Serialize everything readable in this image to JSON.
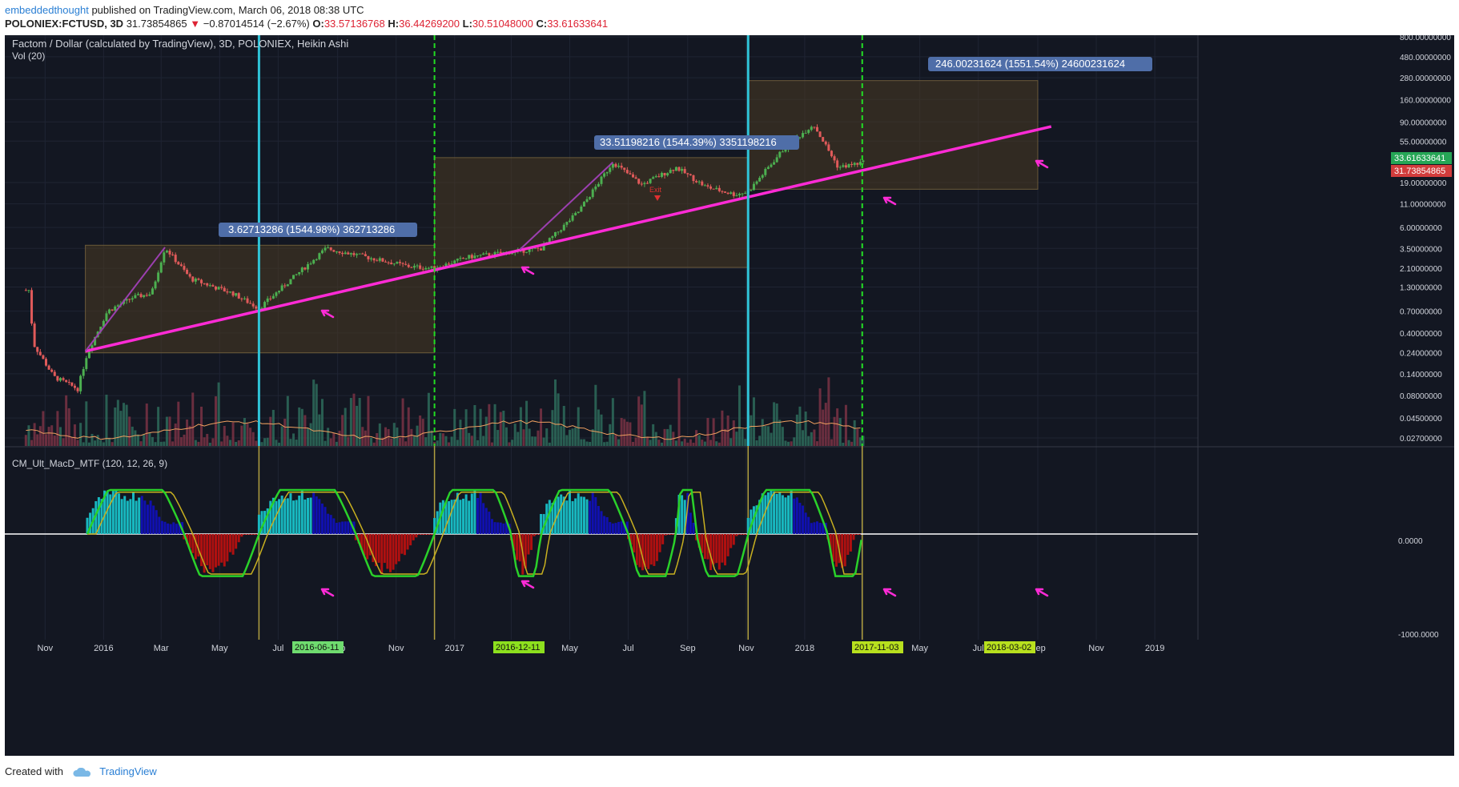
{
  "header": {
    "author": "embeddedthought",
    "published": "published on TradingView.com, March 06, 2018 08:38 UTC",
    "symbol": "POLONIEX:FCTUSD, 3D",
    "price": "31.73854865",
    "change": "−0.87014514 (−2.67%)",
    "o_label": "O:",
    "o": "33.57136768",
    "h_label": "H:",
    "h": "36.44269200",
    "l_label": "L:",
    "l": "30.51048000",
    "c_label": "C:",
    "c": "33.61633641"
  },
  "panel_title": "Factom / Dollar (calculated by TradingView), 3D, POLONIEX, Heikin Ashi",
  "vol_label": "Vol (20)",
  "macd_label": "CM_Ult_MacD_MTF (120, 12, 26, 9)",
  "footer": {
    "created_with": "Created with",
    "brand": "TradingView"
  },
  "colors": {
    "background": "#131722",
    "grid": "#1f2433",
    "candle_up": "#4caf50",
    "candle_down": "#e05a5a",
    "trendline": "#ff2bd6",
    "cyan_marker": "#2fc4d8",
    "green_marker": "#22dd22",
    "box_fill": "#4a3a22",
    "macd_blue": "#1010b0",
    "macd_aqua": "#18b8c0",
    "macd_red": "#b01010",
    "macd_yellow": "#c8b020"
  },
  "chart_data": [
    {
      "type": "candlestick",
      "title": "Factom / Dollar (calculated by TradingView), 3D, POLONIEX, Heikin Ashi",
      "y_scale": "log",
      "y_ticks": [
        "800.00000000",
        "480.00000000",
        "280.00000000",
        "160.00000000",
        "90.00000000",
        "55.00000000",
        "19.00000000",
        "11.00000000",
        "6.00000000",
        "3.50000000",
        "2.10000000",
        "1.30000000",
        "0.70000000",
        "0.40000000",
        "0.24000000",
        "0.14000000",
        "0.08000000",
        "0.04500000",
        "0.02700000"
      ],
      "x_ticks": [
        "Nov",
        "2016",
        "Mar",
        "May",
        "Jul",
        "Sep",
        "Nov",
        "2017",
        "Mar",
        "May",
        "Jul",
        "Sep",
        "Nov",
        "2018",
        "Mar",
        "May",
        "Jul",
        "Sep",
        "Nov",
        "2019"
      ],
      "last_price_label": "33.61633641",
      "last_price_label_red": "31.73854865",
      "approx_price_path": [
        {
          "x": "2015-10-15",
          "y": 1.2
        },
        {
          "x": "2015-10-20",
          "y": 0.3
        },
        {
          "x": "2015-11-10",
          "y": 0.13
        },
        {
          "x": "2015-12-05",
          "y": 0.095
        },
        {
          "x": "2015-12-15",
          "y": 0.24
        },
        {
          "x": "2016-01-05",
          "y": 0.7
        },
        {
          "x": "2016-02-01",
          "y": 1.0
        },
        {
          "x": "2016-02-20",
          "y": 1.1
        },
        {
          "x": "2016-03-05",
          "y": 3.6
        },
        {
          "x": "2016-04-01",
          "y": 1.6
        },
        {
          "x": "2016-05-15",
          "y": 1.1
        },
        {
          "x": "2016-06-11",
          "y": 0.75
        },
        {
          "x": "2016-07-15",
          "y": 1.6
        },
        {
          "x": "2016-08-20",
          "y": 3.5
        },
        {
          "x": "2016-10-01",
          "y": 2.8
        },
        {
          "x": "2016-11-15",
          "y": 2.2
        },
        {
          "x": "2016-12-11",
          "y": 2.1
        },
        {
          "x": "2017-01-15",
          "y": 2.8
        },
        {
          "x": "2017-03-01",
          "y": 3.2
        },
        {
          "x": "2017-04-01",
          "y": 3.5
        },
        {
          "x": "2017-05-10",
          "y": 9.0
        },
        {
          "x": "2017-06-15",
          "y": 32.0
        },
        {
          "x": "2017-07-15",
          "y": 18.0
        },
        {
          "x": "2017-08-20",
          "y": 28.0
        },
        {
          "x": "2017-09-20",
          "y": 17.0
        },
        {
          "x": "2017-10-20",
          "y": 14.0
        },
        {
          "x": "2017-11-03",
          "y": 15.0
        },
        {
          "x": "2017-12-10",
          "y": 45.0
        },
        {
          "x": "2018-01-10",
          "y": 85.0
        },
        {
          "x": "2018-02-05",
          "y": 28.0
        },
        {
          "x": "2018-03-02",
          "y": 31.7
        }
      ],
      "measure_boxes": [
        {
          "label": "3.62713286 (1544.98%) 362713286",
          "from": "2015-12-13",
          "to": "2016-12-11"
        },
        {
          "label": "33.51198216 (1544.39%) 3351198216",
          "from": "2016-12-11",
          "to": "2017-11-03"
        },
        {
          "label": "246.00231624 (1551.54%) 24600231624",
          "from": "2017-11-03",
          "to": "2018-09-01"
        }
      ],
      "annotations": [
        "Exit"
      ],
      "trendline": {
        "from": {
          "x": "2015-12-13",
          "y": 0.25
        },
        "to": {
          "x": "2018-09-15",
          "y": 80
        }
      },
      "vertical_markers": [
        {
          "date": "2016-06-11",
          "style": "cyan"
        },
        {
          "date": "2016-12-11",
          "style": "green-dashed"
        },
        {
          "date": "2017-11-03",
          "style": "cyan"
        },
        {
          "date": "2018-03-02",
          "style": "green-dashed"
        }
      ]
    },
    {
      "type": "bar",
      "title": "CM_Ult_MacD_MTF (120, 12, 26, 9)",
      "y_ticks": [
        "0.0000",
        "-1000.0000"
      ],
      "phases": [
        {
          "from": "2015-12-15",
          "to": "2016-03-25",
          "sign": "positive"
        },
        {
          "from": "2016-03-25",
          "to": "2016-06-11",
          "sign": "negative"
        },
        {
          "from": "2016-06-11",
          "to": "2016-09-20",
          "sign": "positive"
        },
        {
          "from": "2016-09-20",
          "to": "2016-12-11",
          "sign": "negative"
        },
        {
          "from": "2016-12-11",
          "to": "2017-03-01",
          "sign": "positive"
        },
        {
          "from": "2017-03-01",
          "to": "2017-04-01",
          "sign": "negative"
        },
        {
          "from": "2017-04-01",
          "to": "2017-07-01",
          "sign": "positive"
        },
        {
          "from": "2017-07-01",
          "to": "2017-08-20",
          "sign": "negative"
        },
        {
          "from": "2017-08-20",
          "to": "2017-09-10",
          "sign": "positive"
        },
        {
          "from": "2017-09-10",
          "to": "2017-11-03",
          "sign": "negative"
        },
        {
          "from": "2017-11-03",
          "to": "2018-01-25",
          "sign": "positive"
        },
        {
          "from": "2018-01-25",
          "to": "2018-03-02",
          "sign": "negative"
        }
      ]
    }
  ],
  "date_badges": [
    "2016-06-11",
    "2016-12-11",
    "2017-11-03",
    "2018-03-02"
  ],
  "macd_zero": "0.0000",
  "macd_low": "-1000.0000"
}
